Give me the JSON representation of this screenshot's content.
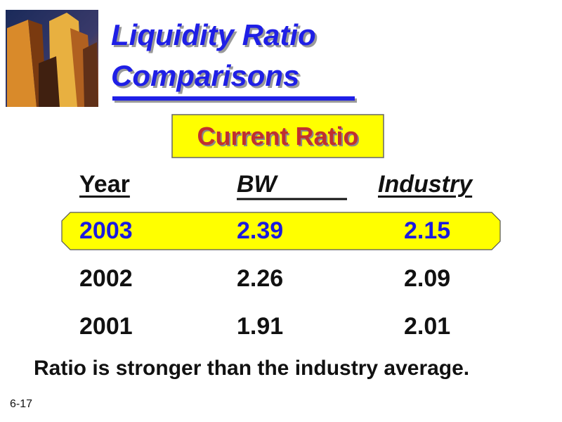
{
  "header": {
    "title_lines": [
      "Liquidity Ratio",
      "Comparisons"
    ],
    "subtitle": "Current Ratio"
  },
  "table": {
    "columns": [
      "Year",
      "BW",
      "Industry"
    ],
    "rows": [
      [
        "2003",
        "2.39",
        "2.15"
      ],
      [
        "2002",
        "2.26",
        "2.09"
      ],
      [
        "2001",
        "1.91",
        "2.01"
      ]
    ]
  },
  "note": "Ratio is stronger than the industry average.",
  "slide_number": "6-17"
}
